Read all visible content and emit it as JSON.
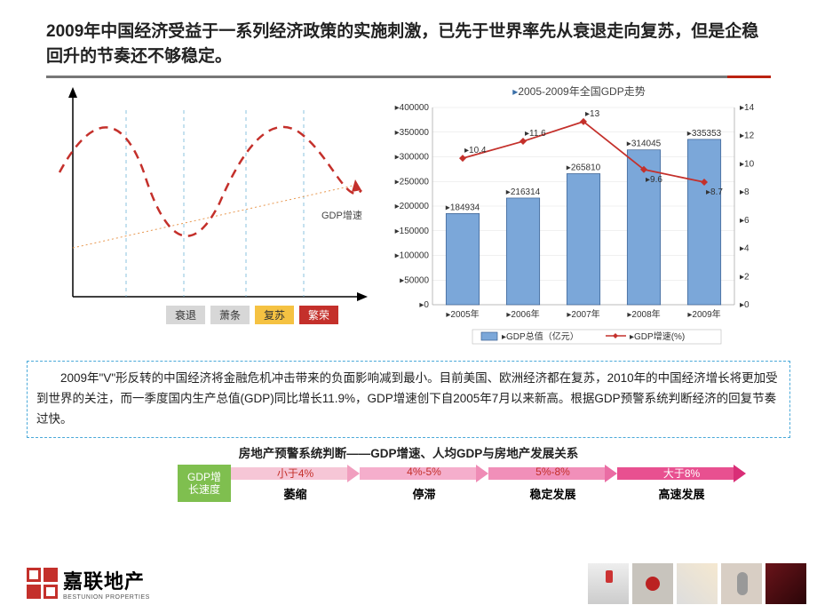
{
  "title_text": "2009年中国经济受益于一系列经济政策的实施刺激，已先于世界率先从衰退走向复苏，但是企稳回升的节奏还不够稳定。",
  "left_chart": {
    "gdp_speed_label": "GDP增速",
    "stages": [
      {
        "label": "衰退",
        "bg": "#d7d7d7",
        "color": "#333"
      },
      {
        "label": "萧条",
        "bg": "#d7d7d7",
        "color": "#333"
      },
      {
        "label": "复苏",
        "bg": "#f5c242",
        "color": "#333"
      },
      {
        "label": "繁荣",
        "bg": "#c4302b",
        "color": "#fff"
      }
    ],
    "wave_color": "#c4302b",
    "trend_color": "#e89850",
    "guide_color": "#6fb5d8"
  },
  "right_chart": {
    "title": "2005-2009年全国GDP走势",
    "y_left_max": 400000,
    "y_left_step": 50000,
    "y_right_max": 14,
    "y_right_step": 2,
    "categories": [
      "2005年",
      "2006年",
      "2007年",
      "2008年",
      "2009年"
    ],
    "gdp_values": [
      184934,
      216314,
      265810,
      314045,
      335353
    ],
    "rate_values": [
      10.4,
      11.6,
      13,
      9.6,
      8.7
    ],
    "bar_color": "#7ba7d9",
    "bar_stroke": "#3a5f8f",
    "line_color": "#c4302b",
    "legend": {
      "bar": "GDP总值（亿元）",
      "line": "GDP增速(%)"
    }
  },
  "description": "2009年\"V\"形反转的中国经济将金融危机冲击带来的负面影响减到最小。目前美国、欧洲经济都在复苏，2010年的中国经济增长将更加受到世界的关注，而一季度国内生产总值(GDP)同比增长11.9%，GDP增速创下自2005年7月以来新高。根据GDP预警系统判断经济的回复节奏过快。",
  "warning_title": "房地产预警系统判断——GDP增速、人均GDP与房地产发展关系",
  "warning_head": {
    "l1": "GDP增",
    "l2": "长速度"
  },
  "warning_cols": [
    {
      "range": "小于4%",
      "status": "萎缩",
      "bg": "#f6c6d6",
      "head": "#f19fbf",
      "text": "#c4302b"
    },
    {
      "range": "4%-5%",
      "status": "停滞",
      "bg": "#f5aecc",
      "head": "#ef8cb6",
      "text": "#c4302b"
    },
    {
      "range": "5%-8%",
      "status": "稳定发展",
      "bg": "#f18fb9",
      "head": "#ea6da4",
      "text": "#c4302b"
    },
    {
      "range": "大于8%",
      "status": "高速发展",
      "bg": "#e85090",
      "head": "#d92e77",
      "text": "#fff"
    }
  ],
  "logo": {
    "cn": "嘉联地产",
    "en": "BESTUNION PROPERTIES"
  }
}
